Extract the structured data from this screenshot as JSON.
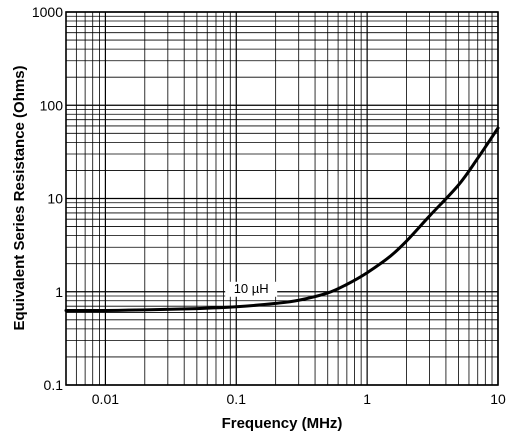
{
  "chart_data": {
    "type": "line",
    "xlabel": "Frequency (MHz)",
    "ylabel": "Equivalent Series Resistance (Ohms)",
    "x_scale": "log",
    "y_scale": "log",
    "xlim": [
      0.005,
      10
    ],
    "ylim": [
      0.1,
      1000
    ],
    "x_ticks": [
      {
        "value": 0.01,
        "label": "0.01"
      },
      {
        "value": 0.1,
        "label": "0.1"
      },
      {
        "value": 1,
        "label": "1"
      },
      {
        "value": 10,
        "label": "10"
      }
    ],
    "y_ticks": [
      {
        "value": 0.1,
        "label": "0.1"
      },
      {
        "value": 1,
        "label": "1"
      },
      {
        "value": 10,
        "label": "10"
      },
      {
        "value": 100,
        "label": "100"
      },
      {
        "value": 1000,
        "label": "1000"
      }
    ],
    "grid": true,
    "series": [
      {
        "annotation": "10 µH",
        "x": [
          0.005,
          0.01,
          0.02,
          0.05,
          0.1,
          0.2,
          0.3,
          0.5,
          0.7,
          1,
          1.5,
          2,
          3,
          5,
          7,
          10
        ],
        "y": [
          0.63,
          0.63,
          0.64,
          0.66,
          0.69,
          0.75,
          0.81,
          0.97,
          1.2,
          1.6,
          2.4,
          3.5,
          6.5,
          14,
          27,
          57
        ]
      }
    ]
  }
}
